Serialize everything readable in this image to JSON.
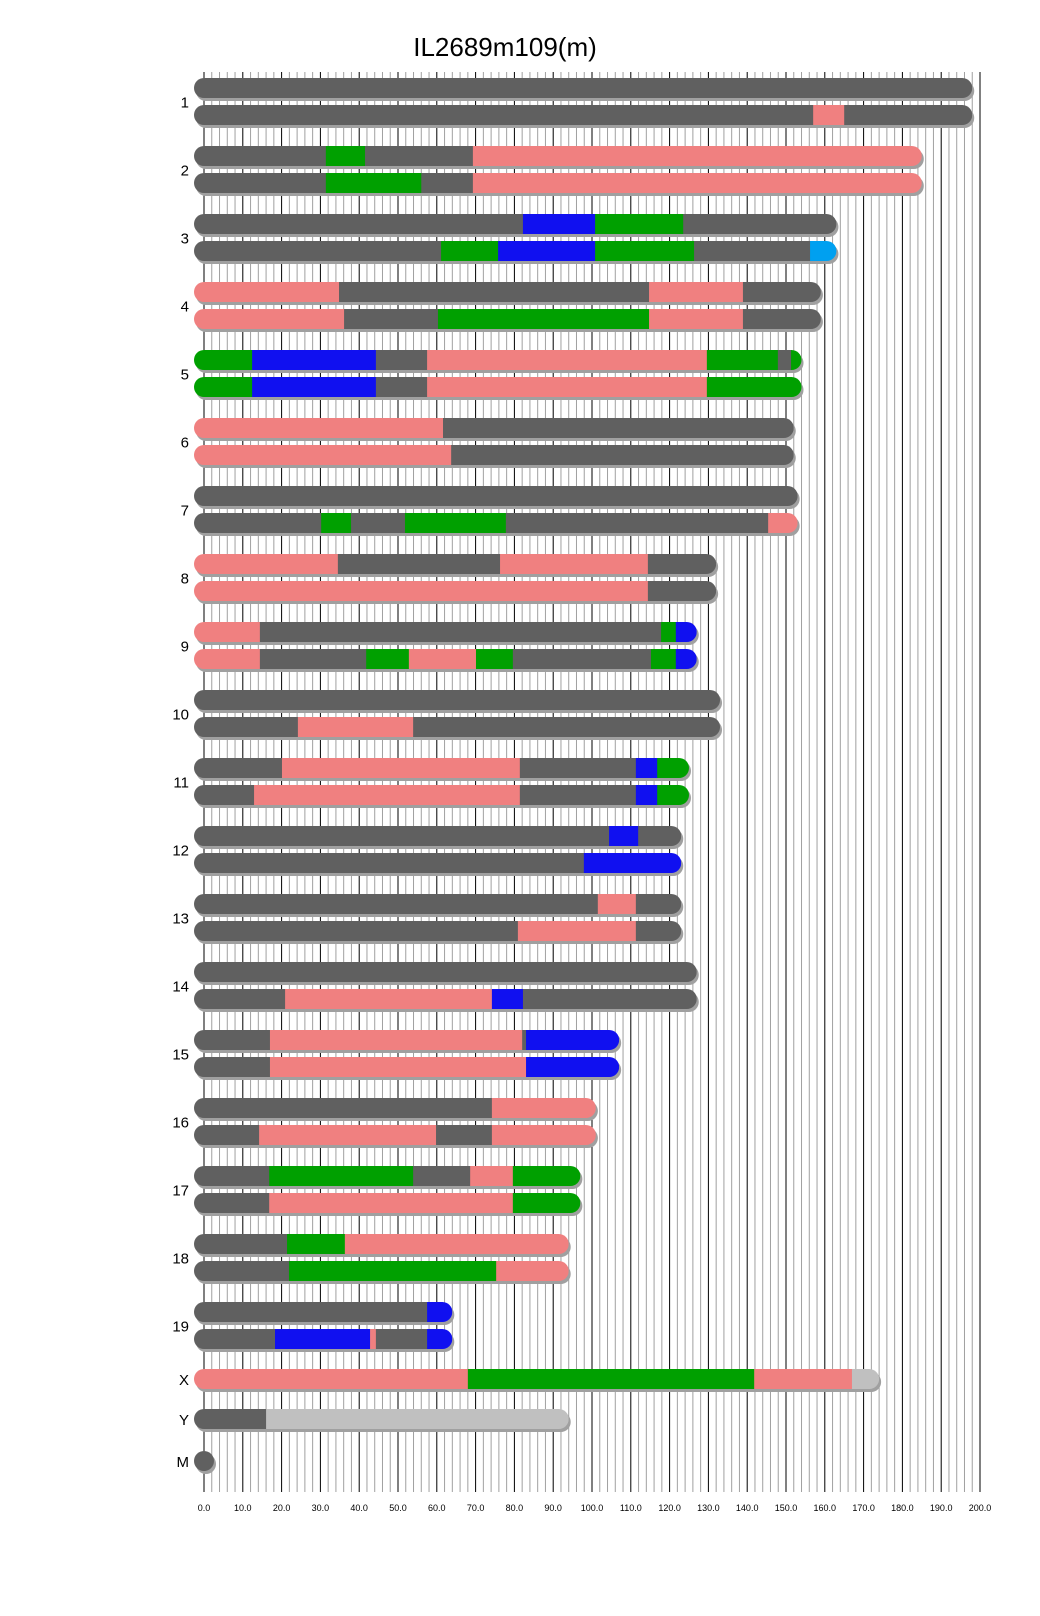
{
  "chart_data": {
    "type": "chromosome-painting",
    "title": "IL2689m109(m)",
    "xlim": [
      0,
      200
    ],
    "xticks": [
      "0.0",
      "10.0",
      "20.0",
      "30.0",
      "40.0",
      "50.0",
      "60.0",
      "70.0",
      "80.0",
      "90.0",
      "100.0",
      "110.0",
      "120.0",
      "130.0",
      "140.0",
      "150.0",
      "160.0",
      "170.0",
      "180.0",
      "190.0",
      "200.0"
    ],
    "grid": true,
    "colors": {
      "g": "#606060",
      "p": "#f08080",
      "G": "#00a000",
      "b": "#1010f0",
      "c": "#00a0f0",
      "l": "#c0c0c0"
    },
    "chromosomes": [
      {
        "name": "1",
        "haplotypes": [
          [
            [
              198,
              "g"
            ]
          ],
          [
            [
              157,
              "g"
            ],
            [
              165,
              "p"
            ],
            [
              198,
              "g"
            ]
          ]
        ]
      },
      {
        "name": "2",
        "haplotypes": [
          [
            [
              31.4,
              "g"
            ],
            [
              41.5,
              "G"
            ],
            [
              69.3,
              "g"
            ],
            [
              185,
              "p"
            ]
          ],
          [
            [
              31.4,
              "g"
            ],
            [
              56,
              "G"
            ],
            [
              69.3,
              "g"
            ],
            [
              185,
              "p"
            ]
          ]
        ]
      },
      {
        "name": "3",
        "haplotypes": [
          [
            [
              82.2,
              "g"
            ],
            [
              100.8,
              "b"
            ],
            [
              123.5,
              "G"
            ],
            [
              163,
              "g"
            ]
          ],
          [
            [
              61.1,
              "g"
            ],
            [
              75.8,
              "G"
            ],
            [
              100.8,
              "b"
            ],
            [
              126.3,
              "G"
            ],
            [
              156.2,
              "g"
            ],
            [
              163,
              "c"
            ]
          ]
        ]
      },
      {
        "name": "4",
        "haplotypes": [
          [
            [
              34.8,
              "p"
            ],
            [
              114.7,
              "g"
            ],
            [
              138.9,
              "p"
            ],
            [
              159,
              "g"
            ]
          ],
          [
            [
              36.1,
              "p"
            ],
            [
              60.3,
              "g"
            ],
            [
              114.7,
              "G"
            ],
            [
              138.9,
              "p"
            ],
            [
              159,
              "g"
            ]
          ]
        ]
      },
      {
        "name": "5",
        "haplotypes": [
          [
            [
              12.4,
              "G"
            ],
            [
              44.3,
              "b"
            ],
            [
              57.5,
              "g"
            ],
            [
              129.6,
              "p"
            ],
            [
              147.9,
              "G"
            ],
            [
              151.3,
              "g"
            ],
            [
              154,
              "G"
            ]
          ],
          [
            [
              12.4,
              "G"
            ],
            [
              44.3,
              "b"
            ],
            [
              57.5,
              "g"
            ],
            [
              129.6,
              "p"
            ],
            [
              154,
              "G"
            ]
          ]
        ]
      },
      {
        "name": "6",
        "haplotypes": [
          [
            [
              61.6,
              "p"
            ],
            [
              152,
              "g"
            ]
          ],
          [
            [
              63.7,
              "p"
            ],
            [
              152,
              "g"
            ]
          ]
        ]
      },
      {
        "name": "7",
        "haplotypes": [
          [
            [
              153,
              "g"
            ]
          ],
          [
            [
              30.2,
              "g"
            ],
            [
              37.9,
              "G"
            ],
            [
              51.8,
              "g"
            ],
            [
              77.8,
              "G"
            ],
            [
              145.4,
              "g"
            ],
            [
              153,
              "p"
            ]
          ]
        ]
      },
      {
        "name": "8",
        "haplotypes": [
          [
            [
              34.5,
              "p"
            ],
            [
              76.3,
              "g"
            ],
            [
              114.4,
              "p"
            ],
            [
              132,
              "g"
            ]
          ],
          [
            [
              114.4,
              "p"
            ],
            [
              132,
              "g"
            ]
          ]
        ]
      },
      {
        "name": "9",
        "haplotypes": [
          [
            [
              14.4,
              "p"
            ],
            [
              117.8,
              "g"
            ],
            [
              121.6,
              "G"
            ],
            [
              127,
              "b"
            ]
          ],
          [
            [
              14.4,
              "p"
            ],
            [
              41.8,
              "g"
            ],
            [
              52.8,
              "G"
            ],
            [
              70.1,
              "p"
            ],
            [
              79.6,
              "G"
            ],
            [
              115.2,
              "g"
            ],
            [
              121.6,
              "G"
            ],
            [
              127,
              "b"
            ]
          ]
        ]
      },
      {
        "name": "10",
        "haplotypes": [
          [
            [
              133,
              "g"
            ]
          ],
          [
            [
              24.2,
              "g"
            ],
            [
              53.9,
              "p"
            ],
            [
              133,
              "g"
            ]
          ]
        ]
      },
      {
        "name": "11",
        "haplotypes": [
          [
            [
              20.1,
              "g"
            ],
            [
              81.4,
              "p"
            ],
            [
              111.3,
              "g"
            ],
            [
              116.8,
              "b"
            ],
            [
              125,
              "G"
            ]
          ],
          [
            [
              12.9,
              "g"
            ],
            [
              81.4,
              "p"
            ],
            [
              111.3,
              "g"
            ],
            [
              116.8,
              "b"
            ],
            [
              125,
              "G"
            ]
          ]
        ]
      },
      {
        "name": "12",
        "haplotypes": [
          [
            [
              104.4,
              "g"
            ],
            [
              111.9,
              "b"
            ],
            [
              123,
              "g"
            ]
          ],
          [
            [
              97.9,
              "g"
            ],
            [
              123,
              "b"
            ]
          ]
        ]
      },
      {
        "name": "13",
        "haplotypes": [
          [
            [
              101.5,
              "g"
            ],
            [
              111.3,
              "p"
            ],
            [
              123,
              "g"
            ]
          ],
          [
            [
              80.9,
              "g"
            ],
            [
              111.3,
              "p"
            ],
            [
              123,
              "g"
            ]
          ]
        ]
      },
      {
        "name": "14",
        "haplotypes": [
          [
            [
              127,
              "g"
            ]
          ],
          [
            [
              20.9,
              "g"
            ],
            [
              74.2,
              "p"
            ],
            [
              82.2,
              "b"
            ],
            [
              127,
              "g"
            ]
          ]
        ]
      },
      {
        "name": "15",
        "haplotypes": [
          [
            [
              17,
              "g"
            ],
            [
              82,
              "p"
            ],
            [
              83,
              "g"
            ],
            [
              107,
              "b"
            ]
          ],
          [
            [
              17,
              "g"
            ],
            [
              83,
              "p"
            ],
            [
              107,
              "b"
            ]
          ]
        ]
      },
      {
        "name": "16",
        "haplotypes": [
          [
            [
              74.2,
              "g"
            ],
            [
              101,
              "p"
            ]
          ],
          [
            [
              14.2,
              "g"
            ],
            [
              59.8,
              "p"
            ],
            [
              74.2,
              "g"
            ],
            [
              101,
              "p"
            ]
          ]
        ]
      },
      {
        "name": "17",
        "haplotypes": [
          [
            [
              16.8,
              "g"
            ],
            [
              53.9,
              "G"
            ],
            [
              68.6,
              "g"
            ],
            [
              79.6,
              "p"
            ],
            [
              97,
              "G"
            ]
          ],
          [
            [
              16.8,
              "g"
            ],
            [
              79.6,
              "p"
            ],
            [
              97,
              "G"
            ]
          ]
        ]
      },
      {
        "name": "18",
        "haplotypes": [
          [
            [
              21.4,
              "g"
            ],
            [
              36.3,
              "G"
            ],
            [
              94,
              "p"
            ]
          ],
          [
            [
              21.9,
              "g"
            ],
            [
              75.3,
              "G"
            ],
            [
              94,
              "p"
            ]
          ]
        ]
      },
      {
        "name": "19",
        "haplotypes": [
          [
            [
              57.5,
              "g"
            ],
            [
              64,
              "b"
            ]
          ],
          [
            [
              18.3,
              "g"
            ],
            [
              42.8,
              "b"
            ],
            [
              44.3,
              "p"
            ],
            [
              57.5,
              "g"
            ],
            [
              64,
              "b"
            ]
          ]
        ]
      },
      {
        "name": "X",
        "haplotypes": [
          [
            [
              68,
              "p"
            ],
            [
              141.8,
              "G"
            ],
            [
              167,
              "p"
            ],
            [
              174,
              "l"
            ]
          ]
        ]
      },
      {
        "name": "Y",
        "haplotypes": [
          [
            [
              16,
              "g"
            ],
            [
              94,
              "l"
            ]
          ]
        ]
      },
      {
        "name": "M",
        "haplotypes": [
          [
            [
              0.02,
              "g"
            ]
          ]
        ]
      }
    ]
  }
}
